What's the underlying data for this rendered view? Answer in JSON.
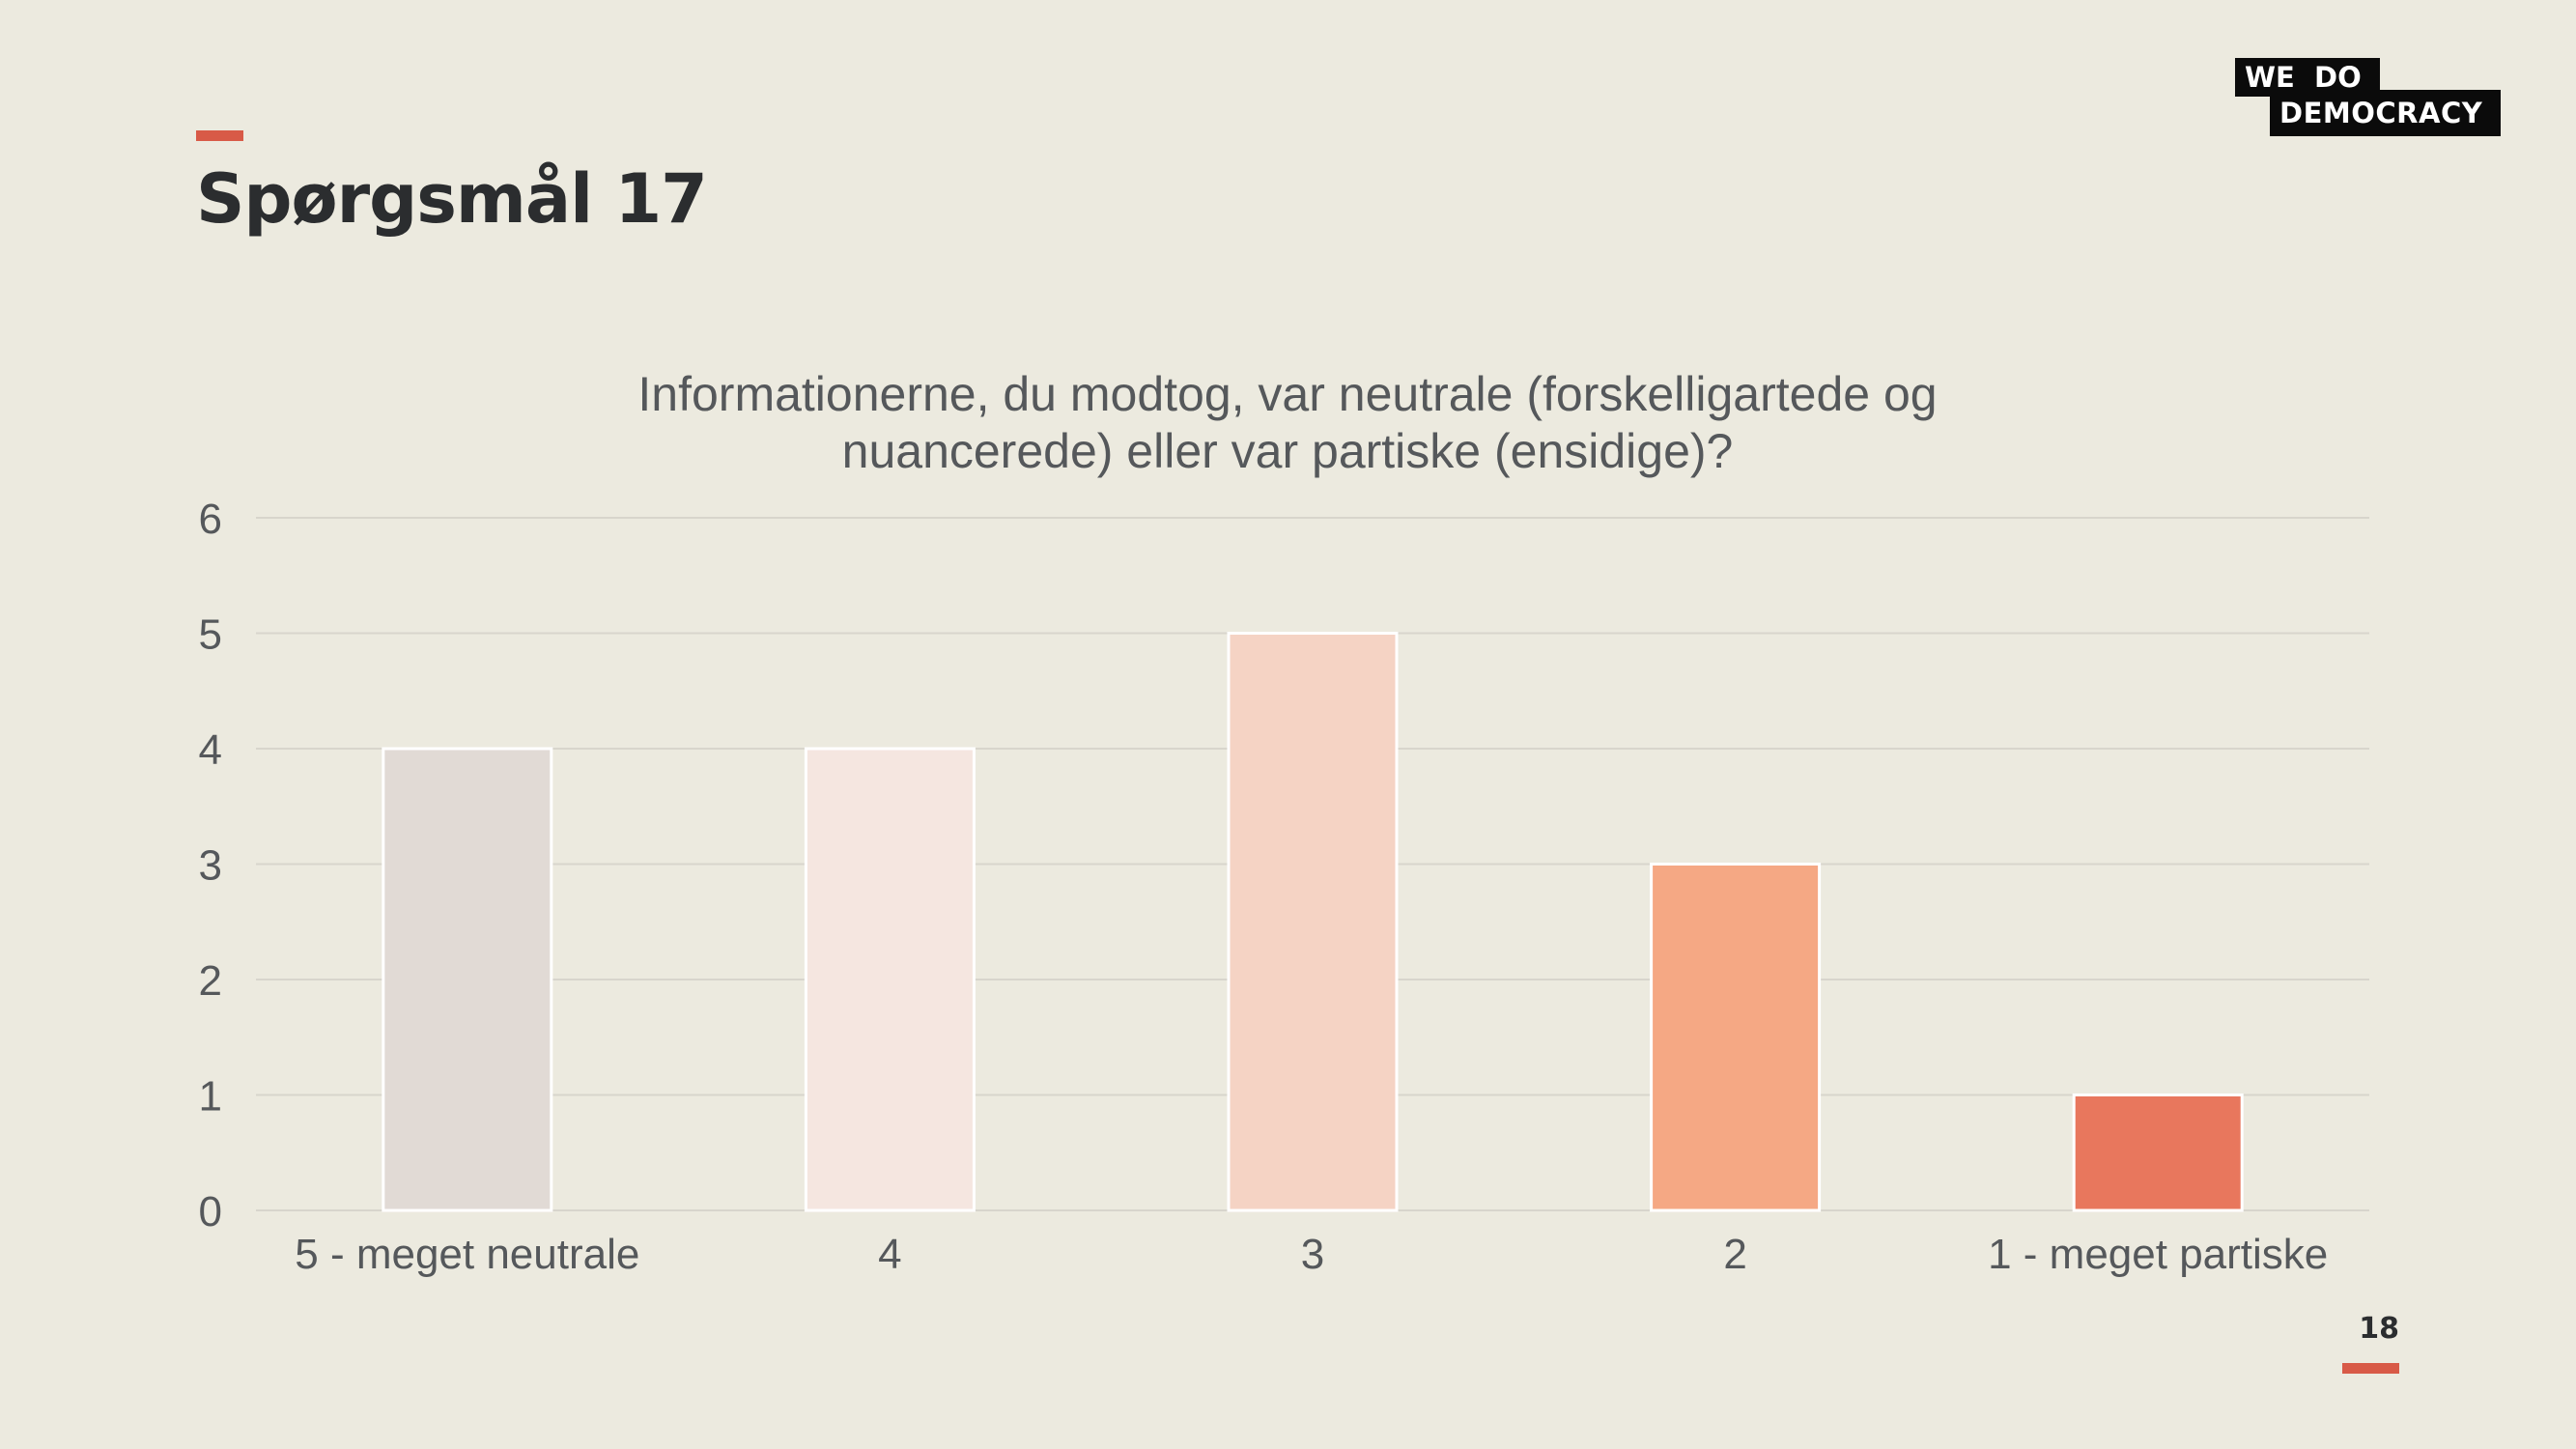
{
  "slide": {
    "title": "Spørgsmål 17",
    "page_number": "18",
    "logo": {
      "line1": "WE  DO",
      "line2": "DEMOCRACY"
    },
    "accent_color": "#D85A47"
  },
  "chart_data": {
    "type": "bar",
    "title": "Informationerne, du modtog, var neutrale (forskelligartede og nuancerede) eller var partiske (ensidige)?",
    "title_lines": [
      "Informationerne, du modtog, var neutrale (forskelligartede og",
      "nuancerede) eller var partiske (ensidige)?"
    ],
    "categories": [
      "5 - meget neutrale",
      "4",
      "3",
      "2",
      "1 - meget partiske"
    ],
    "values": [
      4,
      4,
      5,
      3,
      1
    ],
    "colors": [
      "#E1DAD5",
      "#F5E6E0",
      "#F5D3C4",
      "#F5A884",
      "#E8775D"
    ],
    "xlabel": "",
    "ylabel": "",
    "ylim": [
      0,
      6
    ],
    "yticks": [
      0,
      1,
      2,
      3,
      4,
      5,
      6
    ],
    "grid": true,
    "legend": "none"
  }
}
